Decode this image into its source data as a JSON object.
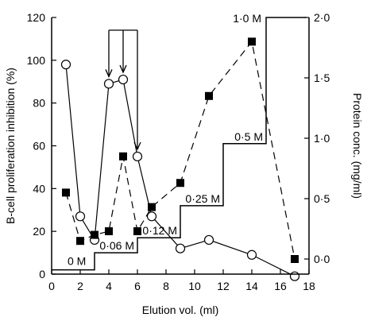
{
  "chart_data": {
    "type": "line",
    "xlabel": "Elution vol. (ml)",
    "ylabel": "B-cell proliferation inhibition (%)",
    "y2label": "Protein conc. (mg/ml)",
    "xlim": [
      0,
      18
    ],
    "ylim": [
      0,
      120
    ],
    "y2lim": [
      -0.125,
      2.0
    ],
    "x_ticks": [
      "0",
      "2",
      "4",
      "6",
      "8",
      "10",
      "12",
      "14",
      "16",
      "18"
    ],
    "y_ticks": [
      "0",
      "20",
      "40",
      "60",
      "80",
      "100",
      "120"
    ],
    "y2_ticks": [
      "0·0",
      "0·5",
      "1·0",
      "1·5",
      "2·0"
    ],
    "y2_tick_values": [
      0.0,
      0.5,
      1.0,
      1.5,
      2.0
    ],
    "series": [
      {
        "axis": "left",
        "marker": "open-circle",
        "line": "solid",
        "x": [
          1,
          2,
          3,
          4,
          5,
          6,
          7,
          9,
          11,
          14,
          17
        ],
        "y": [
          98,
          27,
          16,
          89,
          91,
          55,
          27,
          12,
          16,
          9,
          -1
        ]
      },
      {
        "axis": "right",
        "marker": "filled-square",
        "line": "dashed",
        "x": [
          1,
          2,
          3,
          4,
          5,
          6,
          7,
          9,
          11,
          14,
          17
        ],
        "y": [
          0.55,
          0.15,
          0.2,
          0.23,
          0.85,
          0.23,
          0.43,
          0.63,
          1.35,
          1.8,
          0.0
        ]
      }
    ],
    "gradient_steps": [
      {
        "x_start": 0,
        "x_end": 3,
        "y": 2,
        "label": "0 M"
      },
      {
        "x_start": 3,
        "x_end": 6,
        "y": 10,
        "label": "0·06 M"
      },
      {
        "x_start": 6,
        "x_end": 9,
        "y": 17,
        "label": "0·12 M"
      },
      {
        "x_start": 9,
        "x_end": 12,
        "y": 32,
        "label": "0·25 M"
      },
      {
        "x_start": 12,
        "x_end": 15,
        "y": 61,
        "label": "0·5 M"
      },
      {
        "x_start": 15,
        "x_end": 17.8,
        "y": 120,
        "label": "1·0 M"
      }
    ],
    "arrows_x": [
      4,
      5,
      6
    ]
  }
}
